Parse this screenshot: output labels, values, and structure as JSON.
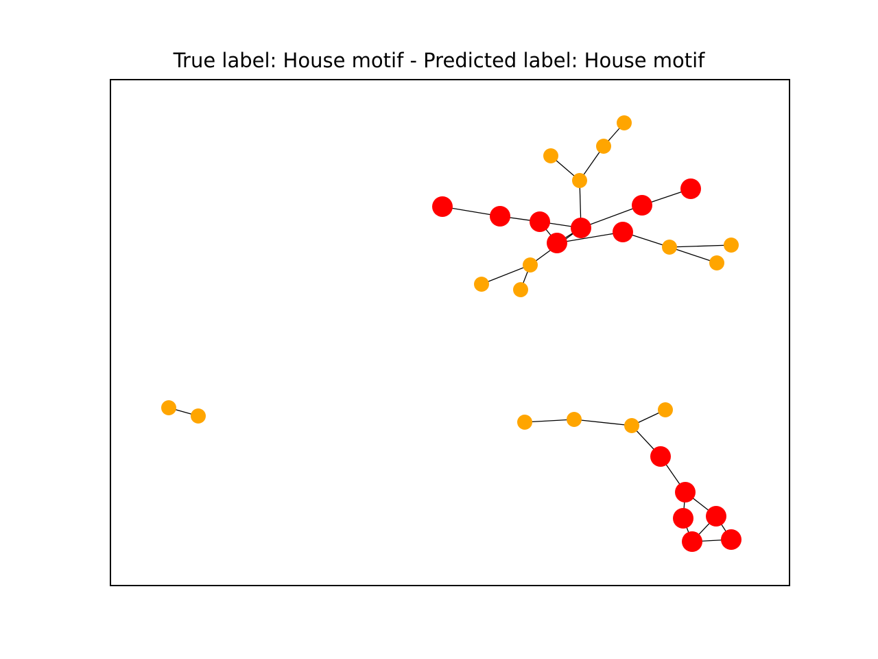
{
  "figure": {
    "title": "True label: House motif - Predicted label: House motif"
  },
  "colors": {
    "highlighted_node": "#ff0000",
    "regular_node": "#ffa500",
    "edge": "#000000",
    "frame": "#000000",
    "background": "#ffffff"
  },
  "graph": {
    "node_types": {
      "highlighted": "motif node (red, large)",
      "regular": "non-motif node (orange, small)"
    },
    "nodes": [
      {
        "id": "r1",
        "type": "highlighted"
      },
      {
        "id": "r2",
        "type": "highlighted"
      },
      {
        "id": "r3",
        "type": "highlighted"
      },
      {
        "id": "r4",
        "type": "highlighted"
      },
      {
        "id": "r5",
        "type": "highlighted"
      },
      {
        "id": "r6",
        "type": "highlighted"
      },
      {
        "id": "r7",
        "type": "highlighted"
      },
      {
        "id": "r8",
        "type": "highlighted"
      },
      {
        "id": "o1",
        "type": "regular"
      },
      {
        "id": "o2",
        "type": "regular"
      },
      {
        "id": "o3",
        "type": "regular"
      },
      {
        "id": "o4",
        "type": "regular"
      },
      {
        "id": "o5",
        "type": "regular"
      },
      {
        "id": "o6",
        "type": "regular"
      },
      {
        "id": "o7",
        "type": "regular"
      },
      {
        "id": "o8",
        "type": "regular"
      },
      {
        "id": "o9",
        "type": "regular"
      },
      {
        "id": "o10",
        "type": "regular"
      },
      {
        "id": "o11",
        "type": "regular"
      },
      {
        "id": "a1",
        "type": "regular"
      },
      {
        "id": "a2",
        "type": "regular"
      },
      {
        "id": "b1",
        "type": "regular"
      },
      {
        "id": "b2",
        "type": "regular"
      },
      {
        "id": "b3",
        "type": "regular"
      },
      {
        "id": "b4",
        "type": "regular"
      },
      {
        "id": "h1",
        "type": "highlighted"
      },
      {
        "id": "h2",
        "type": "highlighted"
      },
      {
        "id": "h3",
        "type": "highlighted"
      },
      {
        "id": "h4",
        "type": "highlighted"
      },
      {
        "id": "h5",
        "type": "highlighted"
      },
      {
        "id": "h6",
        "type": "highlighted"
      }
    ],
    "edges": [
      [
        "r1",
        "r2"
      ],
      [
        "r2",
        "r3"
      ],
      [
        "r3",
        "r4"
      ],
      [
        "r4",
        "r5"
      ],
      [
        "r4",
        "r6"
      ],
      [
        "r6",
        "r7"
      ],
      [
        "r4",
        "o1"
      ],
      [
        "r4",
        "o8"
      ],
      [
        "r3",
        "r5"
      ],
      [
        "r5",
        "r8"
      ],
      [
        "o1",
        "o2"
      ],
      [
        "o2",
        "o3"
      ],
      [
        "o1",
        "o4"
      ],
      [
        "o8",
        "o9"
      ],
      [
        "o8",
        "o10"
      ],
      [
        "r8",
        "o5"
      ],
      [
        "o5",
        "o6"
      ],
      [
        "o5",
        "o7"
      ],
      [
        "a1",
        "a2"
      ],
      [
        "b1",
        "b2"
      ],
      [
        "b2",
        "b3"
      ],
      [
        "b3",
        "b4"
      ],
      [
        "b3",
        "h1"
      ],
      [
        "h1",
        "h2"
      ],
      [
        "h2",
        "h3"
      ],
      [
        "h2",
        "h4"
      ],
      [
        "h3",
        "h5"
      ],
      [
        "h4",
        "h5"
      ],
      [
        "h4",
        "h6"
      ],
      [
        "h6",
        "h5"
      ]
    ]
  }
}
